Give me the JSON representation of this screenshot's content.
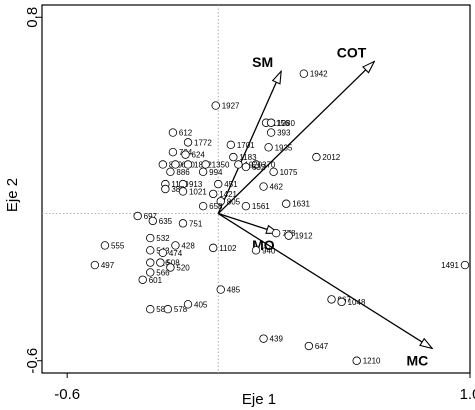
{
  "chart_data": {
    "type": "scatter",
    "title": "",
    "xlabel": "Eje 1",
    "ylabel": "Eje 2",
    "xlim": [
      -0.7,
      1.0
    ],
    "ylim": [
      -0.65,
      0.85
    ],
    "x_ticks": [
      -0.6,
      1.0
    ],
    "y_ticks": [
      -0.6,
      0.8
    ],
    "x_tick_labels": [
      "-0.6",
      "1.0"
    ],
    "y_tick_labels": [
      "-0.6",
      "0.8"
    ],
    "grid": false,
    "reference_lines": "dotted lines at x = 0 and y = 0",
    "points": [
      {
        "label": "1942",
        "x": 0.34,
        "y": 0.57
      },
      {
        "label": "1927",
        "x": -0.01,
        "y": 0.44
      },
      {
        "label": "1156",
        "x": 0.19,
        "y": 0.37
      },
      {
        "label": "1280",
        "x": 0.21,
        "y": 0.37
      },
      {
        "label": "393",
        "x": 0.21,
        "y": 0.33
      },
      {
        "label": "612",
        "x": -0.18,
        "y": 0.33
      },
      {
        "label": "1772",
        "x": -0.12,
        "y": 0.29
      },
      {
        "label": "1701",
        "x": 0.05,
        "y": 0.28
      },
      {
        "label": "1935",
        "x": 0.2,
        "y": 0.27
      },
      {
        "label": "2012",
        "x": 0.39,
        "y": 0.23
      },
      {
        "label": "724",
        "x": -0.18,
        "y": 0.25
      },
      {
        "label": "624",
        "x": -0.13,
        "y": 0.24
      },
      {
        "label": "1183",
        "x": 0.06,
        "y": 0.23
      },
      {
        "label": "370",
        "x": 0.15,
        "y": 0.2
      },
      {
        "label": "859",
        "x": -0.22,
        "y": 0.2
      },
      {
        "label": "670",
        "x": -0.17,
        "y": 0.2
      },
      {
        "label": "1842",
        "x": -0.12,
        "y": 0.2
      },
      {
        "label": "1350",
        "x": -0.05,
        "y": 0.2
      },
      {
        "label": "1920",
        "x": 0.08,
        "y": 0.2
      },
      {
        "label": "632",
        "x": 0.11,
        "y": 0.19
      },
      {
        "label": "1075",
        "x": 0.22,
        "y": 0.17
      },
      {
        "label": "886",
        "x": -0.19,
        "y": 0.17
      },
      {
        "label": "994",
        "x": -0.06,
        "y": 0.17
      },
      {
        "label": "1129",
        "x": -0.21,
        "y": 0.12
      },
      {
        "label": "913",
        "x": -0.14,
        "y": 0.12
      },
      {
        "label": "451",
        "x": 0.0,
        "y": 0.12
      },
      {
        "label": "462",
        "x": 0.18,
        "y": 0.11
      },
      {
        "label": "382",
        "x": -0.21,
        "y": 0.1
      },
      {
        "label": "1021",
        "x": -0.14,
        "y": 0.09
      },
      {
        "label": "1421",
        "x": -0.02,
        "y": 0.08
      },
      {
        "label": "805",
        "x": 0.01,
        "y": 0.05
      },
      {
        "label": "1631",
        "x": 0.27,
        "y": 0.04
      },
      {
        "label": "1561",
        "x": 0.11,
        "y": 0.03
      },
      {
        "label": "658",
        "x": -0.06,
        "y": 0.03
      },
      {
        "label": "697",
        "x": -0.32,
        "y": -0.01
      },
      {
        "label": "635",
        "x": -0.26,
        "y": -0.03
      },
      {
        "label": "751",
        "x": -0.14,
        "y": -0.04
      },
      {
        "label": "778",
        "x": 0.23,
        "y": -0.08
      },
      {
        "label": "1912",
        "x": 0.28,
        "y": -0.09
      },
      {
        "label": "532",
        "x": -0.27,
        "y": -0.1
      },
      {
        "label": "555",
        "x": -0.45,
        "y": -0.13
      },
      {
        "label": "543",
        "x": -0.27,
        "y": -0.15
      },
      {
        "label": "474",
        "x": -0.22,
        "y": -0.16
      },
      {
        "label": "428",
        "x": -0.17,
        "y": -0.13
      },
      {
        "label": "1102",
        "x": -0.02,
        "y": -0.14
      },
      {
        "label": "940",
        "x": 0.15,
        "y": -0.15
      },
      {
        "label": "416",
        "x": -0.27,
        "y": -0.2
      },
      {
        "label": "508",
        "x": -0.23,
        "y": -0.2
      },
      {
        "label": "520",
        "x": -0.19,
        "y": -0.22
      },
      {
        "label": "497",
        "x": -0.49,
        "y": -0.21
      },
      {
        "label": "566",
        "x": -0.27,
        "y": -0.24
      },
      {
        "label": "601",
        "x": -0.3,
        "y": -0.27
      },
      {
        "label": "485",
        "x": 0.01,
        "y": -0.31
      },
      {
        "label": "1491",
        "x": 0.98,
        "y": -0.21
      },
      {
        "label": "967",
        "x": 0.45,
        "y": -0.35
      },
      {
        "label": "1048",
        "x": 0.49,
        "y": -0.36
      },
      {
        "label": "589",
        "x": -0.27,
        "y": -0.39
      },
      {
        "label": "578",
        "x": -0.2,
        "y": -0.39
      },
      {
        "label": "405",
        "x": -0.12,
        "y": -0.37
      },
      {
        "label": "439",
        "x": 0.18,
        "y": -0.51
      },
      {
        "label": "647",
        "x": 0.36,
        "y": -0.54
      },
      {
        "label": "1210",
        "x": 0.55,
        "y": -0.6
      }
    ],
    "vectors": [
      {
        "label": "SM",
        "x": 0.25,
        "y": 0.58
      },
      {
        "label": "COT",
        "x": 0.62,
        "y": 0.62
      },
      {
        "label": "MO",
        "x": 0.24,
        "y": -0.08
      },
      {
        "label": "MC",
        "x": 0.85,
        "y": -0.55
      }
    ]
  }
}
